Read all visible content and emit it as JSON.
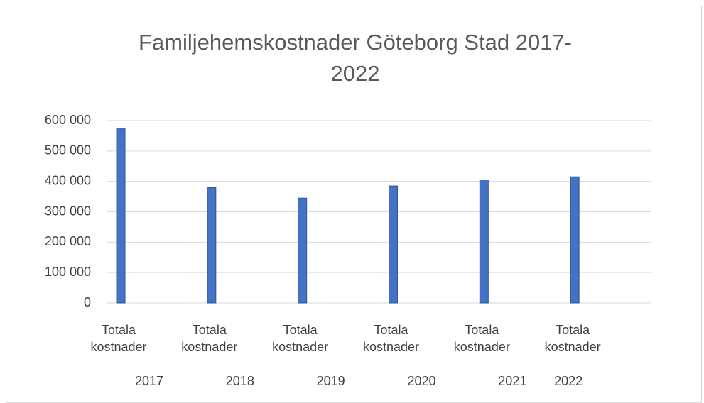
{
  "chart_data": {
    "type": "bar",
    "title": "Familjehemskostnader Göteborg Stad 2017-2022",
    "categories": [
      "Totala kostnader",
      "Totala kostnader",
      "Totala kostnader",
      "Totala kostnader",
      "Totala kostnader",
      "Totala kostnader"
    ],
    "groups": [
      "2017",
      "2018",
      "2019",
      "2020",
      "2021",
      "2022"
    ],
    "values": [
      575000,
      380000,
      345000,
      385000,
      405000,
      415000
    ],
    "color": "#4472c4",
    "ylim": [
      0,
      600000
    ],
    "yticks": [
      0,
      {
        "value": 100000,
        "label": "100 000"
      },
      {
        "value": 200000,
        "label": "200 000"
      },
      {
        "value": 300000,
        "label": "300 000"
      },
      {
        "value": 400000,
        "label": "400 000"
      },
      {
        "value": 500000,
        "label": "500 000"
      },
      {
        "value": 600000,
        "label": "600 000"
      }
    ],
    "grid": true
  }
}
